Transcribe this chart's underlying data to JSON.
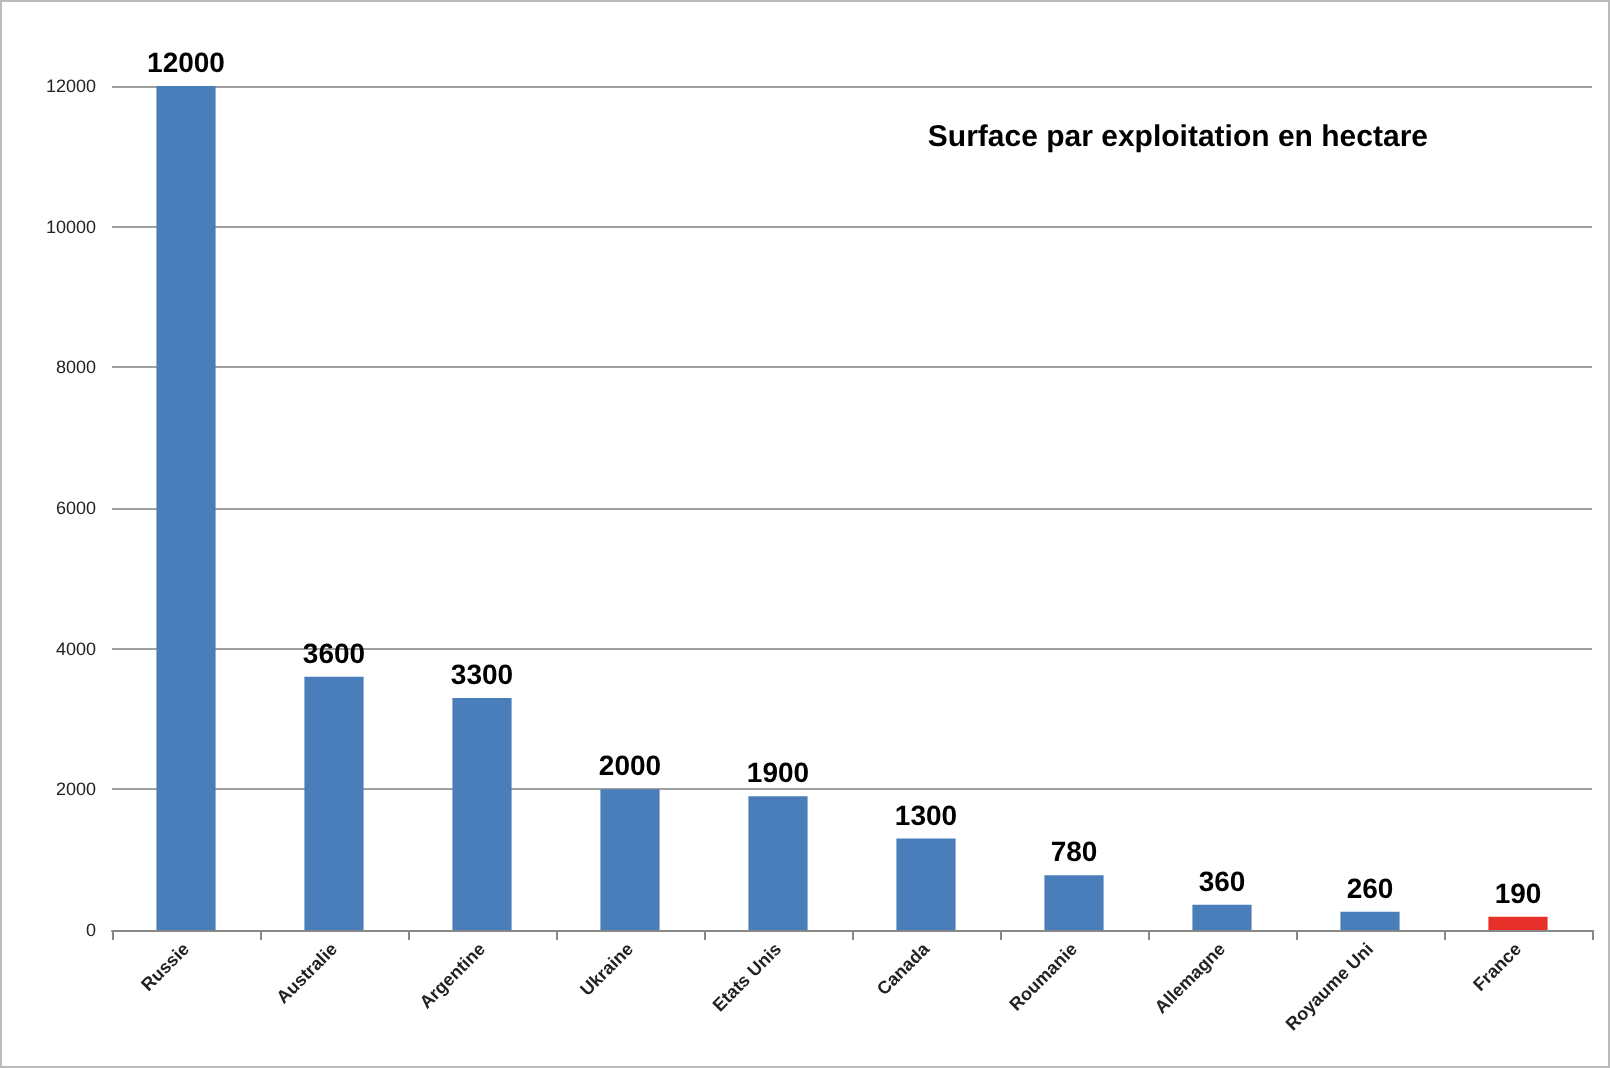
{
  "chart_data": {
    "type": "bar",
    "title": "Surface par exploitation en hectare",
    "categories": [
      "Russie",
      "Australie",
      "Argentine",
      "Ukraine",
      "Etats Unis",
      "Canada",
      "Roumanie",
      "Allemagne",
      "Royaume Uni",
      "France"
    ],
    "values": [
      12000,
      3600,
      3300,
      2000,
      1900,
      1300,
      780,
      360,
      260,
      190
    ],
    "colors": [
      "#4a7ebb",
      "#4a7ebb",
      "#4a7ebb",
      "#4a7ebb",
      "#4a7ebb",
      "#4a7ebb",
      "#4a7ebb",
      "#4a7ebb",
      "#4a7ebb",
      "#e8302a"
    ],
    "ylim": [
      0,
      12000
    ],
    "yticks": [
      0,
      2000,
      4000,
      6000,
      8000,
      10000,
      12000
    ],
    "grid": "y",
    "data_labels": true
  }
}
